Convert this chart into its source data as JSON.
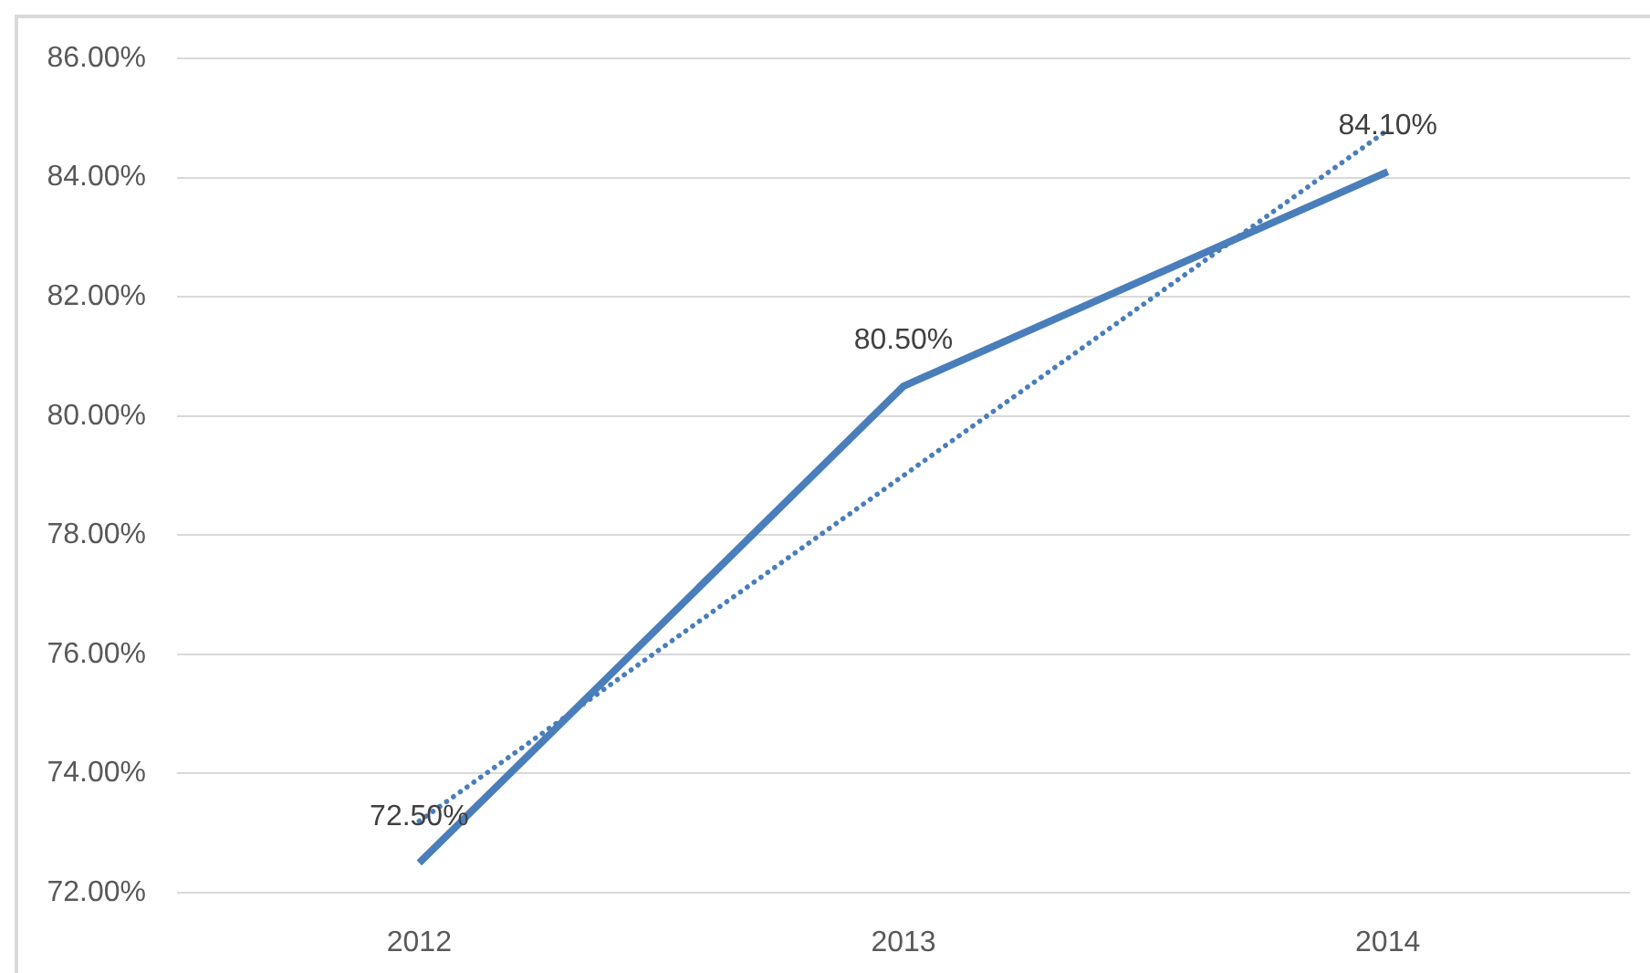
{
  "chart_data": {
    "type": "line",
    "categories": [
      "2012",
      "2013",
      "2014"
    ],
    "series": [
      {
        "color": "#4a7ebb",
        "values": [
          72.5,
          80.5,
          84.1
        ],
        "value_labels": [
          "72.50%",
          "80.50%",
          "84.10%"
        ]
      },
      {
        "type": "line",
        "color": "#4a7ebb",
        "values": [
          73.2,
          79.0,
          84.8
        ],
        "line_style": "dotted"
      }
    ],
    "ylim": [
      72,
      86
    ],
    "yticks": [
      {
        "value": 72,
        "label": "72.00%"
      },
      {
        "value": 74,
        "label": "74.00%"
      },
      {
        "value": 76,
        "label": "76.00%"
      },
      {
        "value": 78,
        "label": "78.00%"
      },
      {
        "value": 80,
        "label": "80.00%"
      },
      {
        "value": 82,
        "label": "82.00%"
      },
      {
        "value": 84,
        "label": "84.00%"
      },
      {
        "value": 86,
        "label": "86.00%"
      }
    ],
    "grid": "y",
    "legend": false,
    "marker": "none"
  }
}
